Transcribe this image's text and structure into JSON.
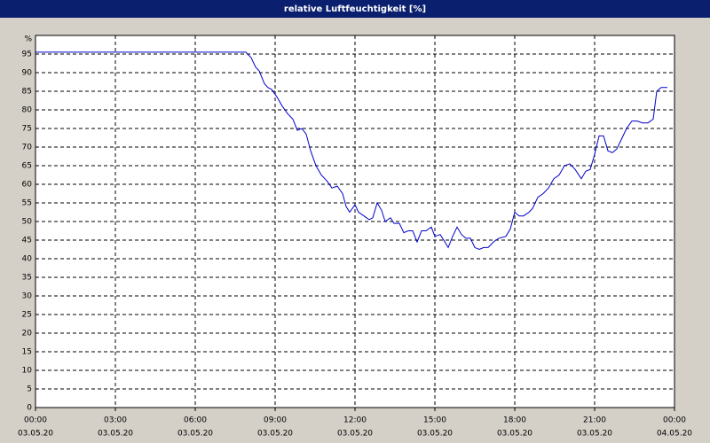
{
  "chart_data": {
    "type": "line",
    "title": "relative Luftfeuchtigkeit [%]",
    "y_unit": "%",
    "ylim": [
      0,
      100
    ],
    "yticks": [
      0,
      5,
      10,
      15,
      20,
      25,
      30,
      35,
      40,
      45,
      50,
      55,
      60,
      65,
      70,
      75,
      80,
      85,
      90,
      95
    ],
    "xlim": [
      "03.05.20 00:00",
      "04.05.20 00:00"
    ],
    "xticks": [
      {
        "value": "03.05.20 00:00",
        "time": "00:00",
        "date": "03.05.20"
      },
      {
        "value": "03.05.20 03:00",
        "time": "03:00",
        "date": "03.05.20"
      },
      {
        "value": "03.05.20 06:00",
        "time": "06:00",
        "date": "03.05.20"
      },
      {
        "value": "03.05.20 09:00",
        "time": "09:00",
        "date": "03.05.20"
      },
      {
        "value": "03.05.20 12:00",
        "time": "12:00",
        "date": "03.05.20"
      },
      {
        "value": "03.05.20 15:00",
        "time": "15:00",
        "date": "03.05.20"
      },
      {
        "value": "03.05.20 18:00",
        "time": "18:00",
        "date": "03.05.20"
      },
      {
        "value": "03.05.20 21:00",
        "time": "21:00",
        "date": "03.05.20"
      },
      {
        "value": "04.05.20 00:00",
        "time": "00:00",
        "date": "04.05.20"
      }
    ],
    "grid": true,
    "color": "#0000cc",
    "x": [
      "03.05.20 00:00",
      "03.05.20 07:54",
      "03.05.20 08:06",
      "03.05.20 08:16",
      "03.05.20 08:24",
      "03.05.20 08:36",
      "03.05.20 08:44",
      "03.05.20 08:52",
      "03.05.20 09:04",
      "03.05.20 09:16",
      "03.05.20 09:28",
      "03.05.20 09:40",
      "03.05.20 09:50",
      "03.05.20 10:00",
      "03.05.20 10:10",
      "03.05.20 10:20",
      "03.05.20 10:32",
      "03.05.20 10:44",
      "03.05.20 10:56",
      "03.05.20 11:08",
      "03.05.20 11:20",
      "03.05.20 11:32",
      "03.05.20 11:40",
      "03.05.20 11:48",
      "03.05.20 12:00",
      "03.05.20 12:08",
      "03.05.20 12:20",
      "03.05.20 12:32",
      "03.05.20 12:40",
      "03.05.20 12:50",
      "03.05.20 13:00",
      "03.05.20 13:08",
      "03.05.20 13:20",
      "03.05.20 13:28",
      "03.05.20 13:40",
      "03.05.20 13:50",
      "03.05.20 14:00",
      "03.05.20 14:10",
      "03.05.20 14:20",
      "03.05.20 14:30",
      "03.05.20 14:40",
      "03.05.20 14:52",
      "03.05.20 15:00",
      "03.05.20 15:12",
      "03.05.20 15:20",
      "03.05.20 15:30",
      "03.05.20 15:40",
      "03.05.20 15:50",
      "03.05.20 16:00",
      "03.05.20 16:10",
      "03.05.20 16:20",
      "03.05.20 16:30",
      "03.05.20 16:40",
      "03.05.20 16:50",
      "03.05.20 17:00",
      "03.05.20 17:12",
      "03.05.20 17:24",
      "03.05.20 17:40",
      "03.05.20 17:50",
      "03.05.20 18:00",
      "03.05.20 18:10",
      "03.05.20 18:20",
      "03.05.20 18:32",
      "03.05.20 18:40",
      "03.05.20 18:52",
      "03.05.20 19:04",
      "03.05.20 19:16",
      "03.05.20 19:28",
      "03.05.20 19:40",
      "03.05.20 19:52",
      "03.05.20 20:04",
      "03.05.20 20:16",
      "03.05.20 20:30",
      "03.05.20 20:40",
      "03.05.20 20:50",
      "03.05.20 21:00",
      "03.05.20 21:10",
      "03.05.20 21:20",
      "03.05.20 21:30",
      "03.05.20 21:40",
      "03.05.20 21:50",
      "03.05.20 22:00",
      "03.05.20 22:12",
      "03.05.20 22:24",
      "03.05.20 22:36",
      "03.05.20 22:48",
      "03.05.20 23:00",
      "03.05.20 23:12",
      "03.05.20 23:20",
      "03.05.20 23:30",
      "03.05.20 23:44"
    ],
    "values": [
      95.5,
      95.5,
      94,
      91.5,
      90.5,
      87,
      86,
      85.5,
      83.5,
      81,
      79,
      77.5,
      74.5,
      75,
      73.5,
      69,
      65,
      62.5,
      61,
      59,
      59.5,
      57.5,
      54,
      52.5,
      54.5,
      52.5,
      51.5,
      50.5,
      51,
      55,
      53,
      50,
      51,
      49.5,
      49.5,
      47,
      47.5,
      47.5,
      44.5,
      47.5,
      47.5,
      48.5,
      46,
      46.5,
      45,
      43,
      46,
      48.5,
      46.5,
      45.5,
      45.5,
      43,
      42.5,
      43,
      43,
      44.5,
      45.5,
      46,
      48,
      52.5,
      51.5,
      51.5,
      52.5,
      53.5,
      56.5,
      57.5,
      59,
      61.5,
      62.5,
      65,
      65.5,
      64,
      61.5,
      63.5,
      64,
      68,
      73,
      73,
      69,
      68.5,
      69.5,
      72,
      75,
      77,
      77,
      76.5,
      76.5,
      77.5,
      85,
      86,
      86
    ]
  }
}
